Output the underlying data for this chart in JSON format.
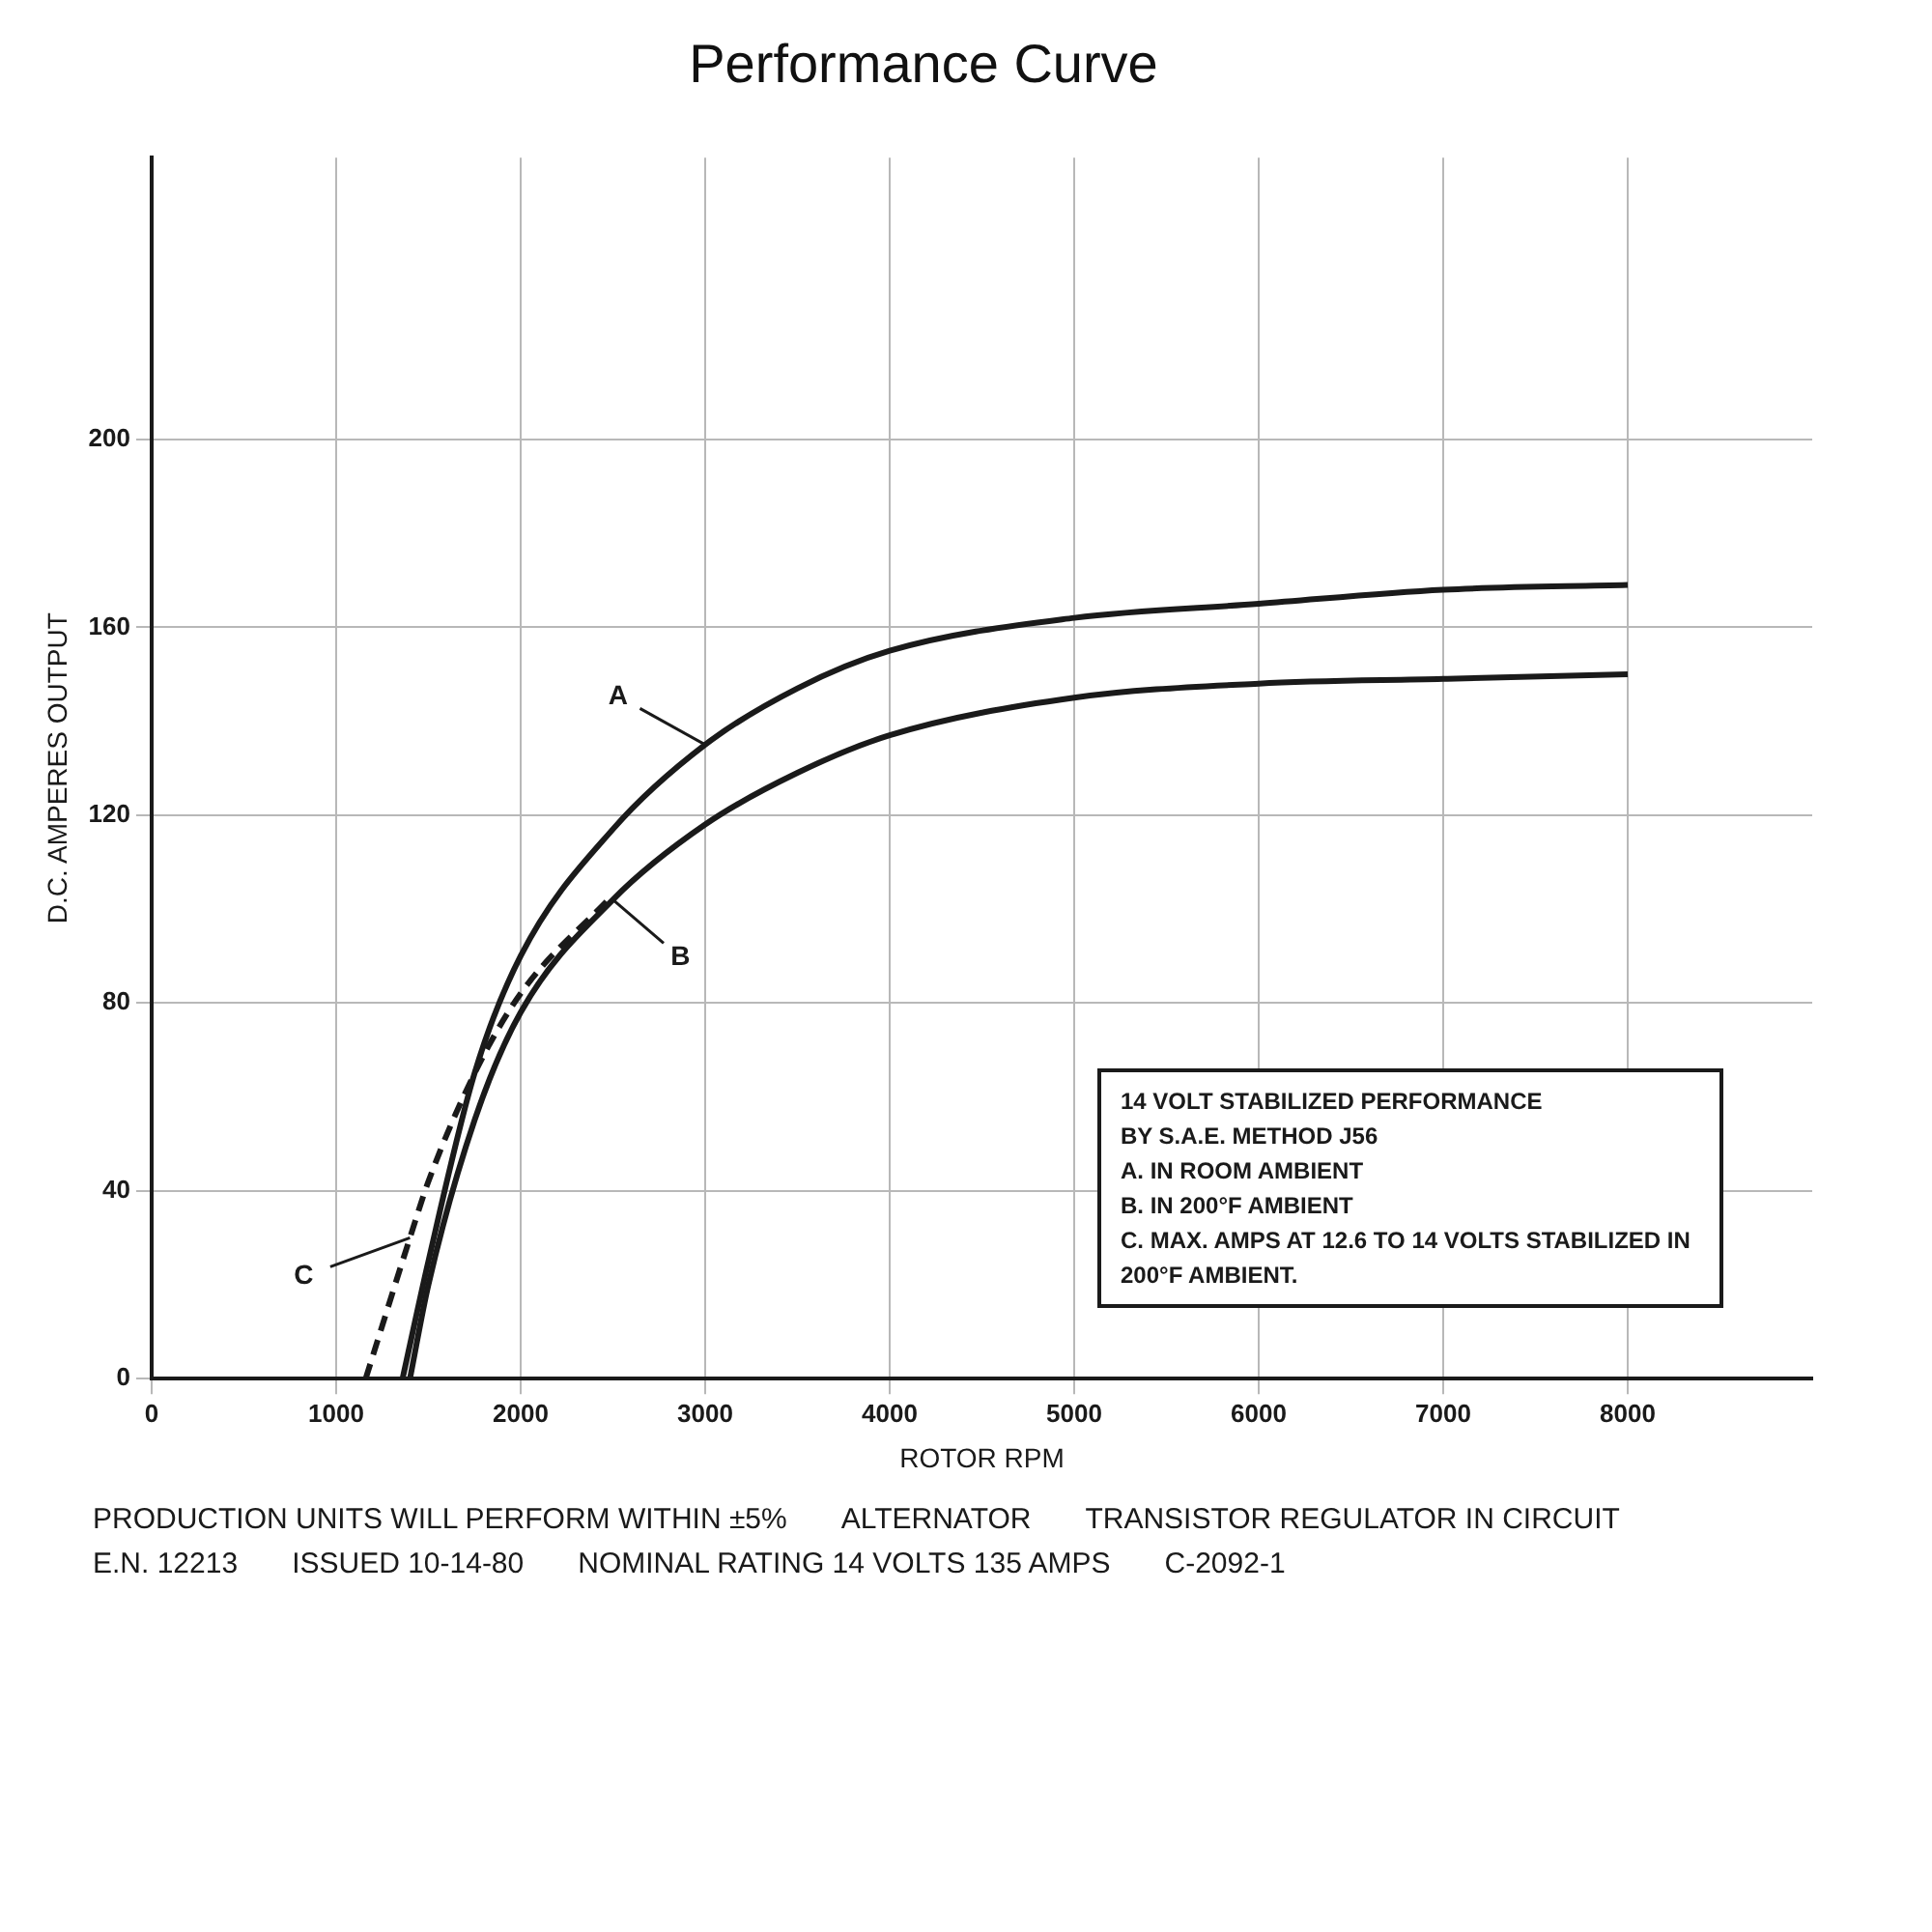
{
  "chart_data": {
    "type": "line",
    "title": "Performance Curve",
    "xlabel": "ROTOR RPM",
    "ylabel": "D.C. AMPERES OUTPUT",
    "xlim": [
      0,
      9000
    ],
    "xticks": [
      0,
      1000,
      2000,
      3000,
      4000,
      5000,
      6000,
      7000,
      8000
    ],
    "ylim": [
      0,
      260
    ],
    "yticks": [
      0,
      40,
      80,
      120,
      160,
      200
    ],
    "grid": true,
    "legend": false,
    "marker": "none",
    "series": [
      {
        "name": "A",
        "color": "#1a1a1a",
        "line_style": "solid",
        "x": [
          1360,
          1500,
          1750,
          2000,
          2500,
          3000,
          3500,
          4000,
          5000,
          6000,
          7000,
          8000
        ],
        "values": [
          0,
          25,
          65,
          90,
          117,
          135,
          147,
          155,
          162,
          165,
          168,
          169
        ]
      },
      {
        "name": "B",
        "color": "#1a1a1a",
        "line_style": "solid",
        "x": [
          1400,
          1500,
          1750,
          2000,
          2500,
          3000,
          3500,
          4000,
          5000,
          6000,
          7000,
          8000
        ],
        "values": [
          0,
          20,
          55,
          78,
          102,
          118,
          129,
          137,
          145,
          148,
          149,
          150
        ]
      },
      {
        "name": "C",
        "color": "#1a1a1a",
        "line_style": "dashed",
        "x": [
          1160,
          1400,
          1500,
          1750,
          2000,
          2500
        ],
        "values": [
          0,
          30,
          42,
          65,
          82,
          103
        ]
      }
    ],
    "annotations": [
      "14 VOLT STABILIZED PERFORMANCE",
      "BY S.A.E. METHOD J56",
      "A. IN ROOM AMBIENT",
      "B. IN 200°F AMBIENT",
      "C. MAX. AMPS AT 12.6 TO 14 VOLTS STABILIZED IN 200°F AMBIENT.",
      "PRODUCTION UNITS WILL PERFORM WITHIN ±5%",
      "ALTERNATOR",
      "TRANSISTOR REGULATOR IN CIRCUIT",
      "E.N. 12213",
      "ISSUED 10-14-80",
      "NOMINAL RATING 14 VOLTS 135 AMPS",
      "C-2092-1"
    ]
  }
}
